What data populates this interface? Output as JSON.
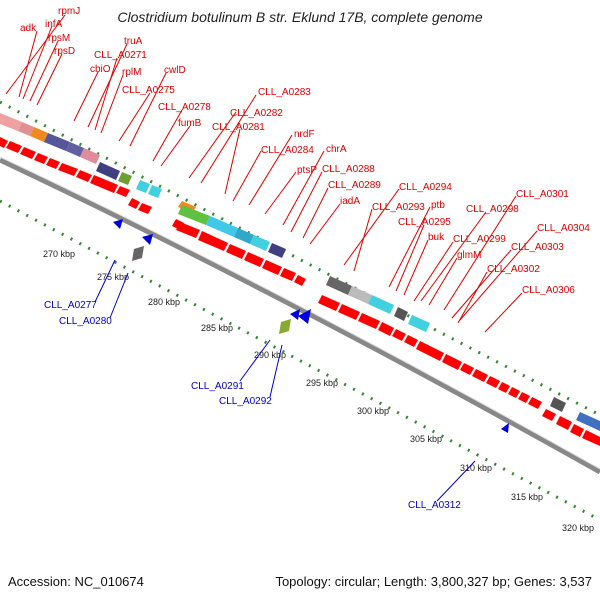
{
  "title": "Clostridium botulinum B str. Eklund 17B, complete genome",
  "footer": {
    "accession": "Accession: NC_010674",
    "summary": "Topology: circular; Length: 3,800,327 bp; Genes: 3,537"
  },
  "colors": {
    "forward_label": "#dd0000",
    "reverse_label": "#0000cc",
    "scale_ticks": "#338833",
    "backbone": "#888888"
  },
  "scale_labels": [
    "270 kbp",
    "275 kbp",
    "280 kbp",
    "285 kbp",
    "290 kbp",
    "295 kbp",
    "300 kbp",
    "305 kbp",
    "310 kbp",
    "315 kbp",
    "320 kbp"
  ],
  "forward_genes": [
    "rpmJ",
    "adk",
    "infA",
    "rpsM",
    "rpsD",
    "truA",
    "CLL_A0271",
    "cbiO",
    "rplM",
    "cwlD",
    "CLL_A0275",
    "CLL_A0278",
    "fumB",
    "CLL_A0283",
    "CLL_A0282",
    "CLL_A0281",
    "nrdF",
    "CLL_A0284",
    "chrA",
    "ptsP",
    "CLL_A0288",
    "CLL_A0289",
    "iadA",
    "CLL_A0294",
    "CLL_A0293",
    "ptb",
    "CLL_A0295",
    "CLL_A0298",
    "buk",
    "CLL_A0301",
    "CLL_A0299",
    "glmM",
    "CLL_A0304",
    "CLL_A0303",
    "CLL_A0302",
    "CLL_A0306"
  ],
  "reverse_genes": [
    "CLL_A0277",
    "CLL_A0280",
    "CLL_A0291",
    "CLL_A0292",
    "CLL_A0312"
  ]
}
